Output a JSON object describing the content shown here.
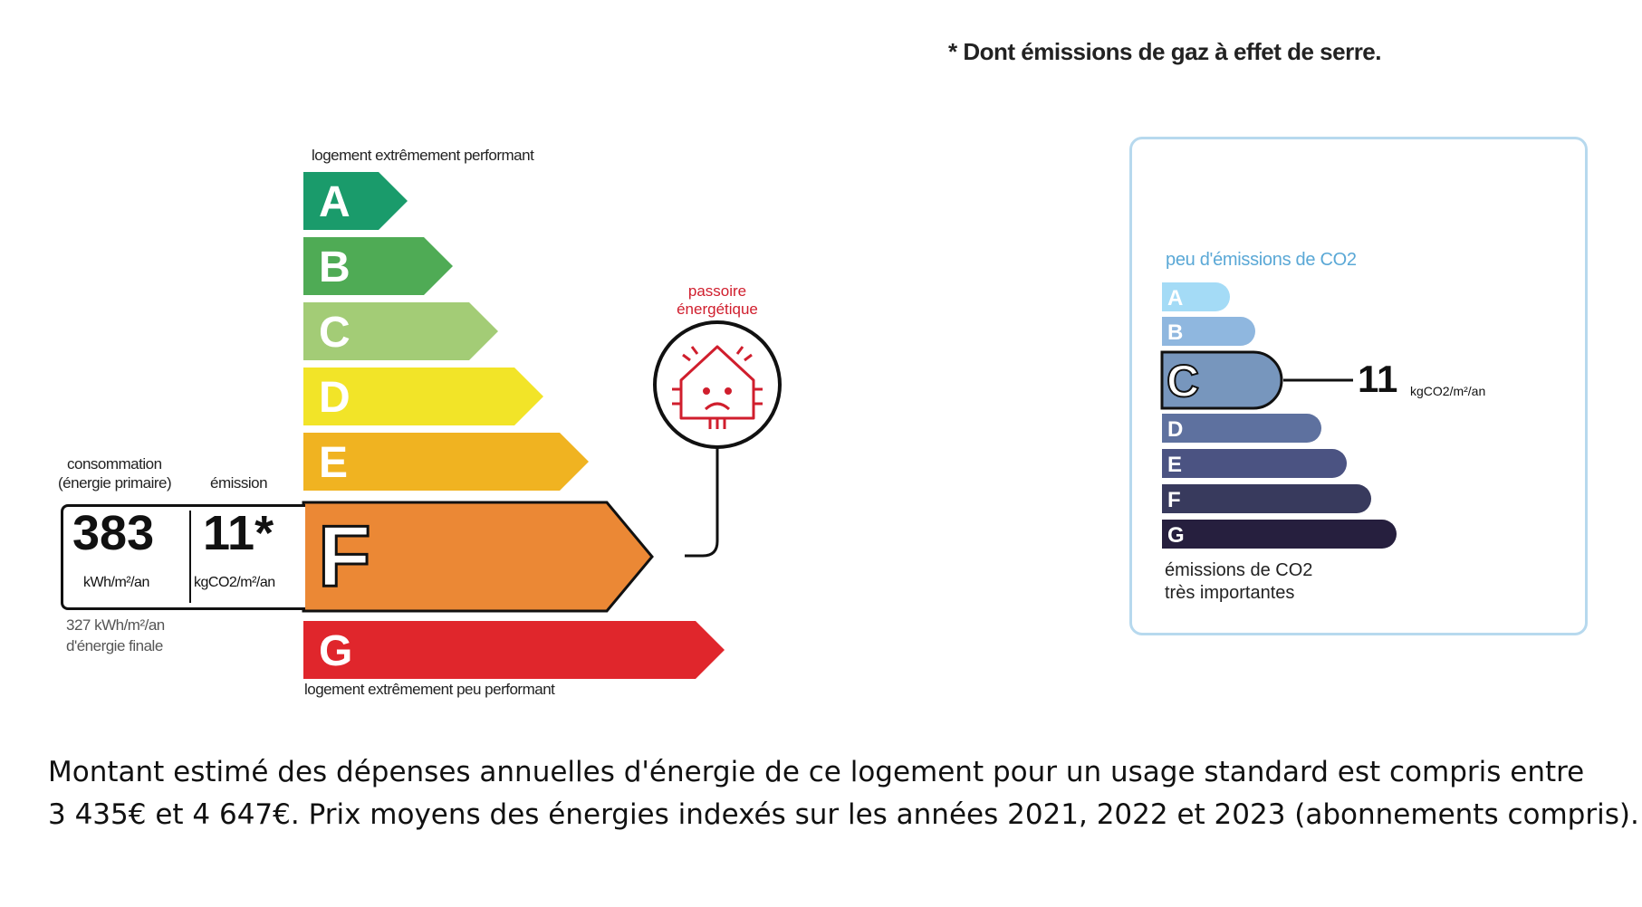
{
  "header": {
    "note": "* Dont émissions de gaz à effet de serre."
  },
  "dpe": {
    "top_label": "logement extrêmement performant",
    "bottom_label": "logement extrêmement peu performant",
    "classes": [
      {
        "letter": "A",
        "color": "#1a9b6b"
      },
      {
        "letter": "B",
        "color": "#4fab55"
      },
      {
        "letter": "C",
        "color": "#a3cc76"
      },
      {
        "letter": "D",
        "color": "#f2e428"
      },
      {
        "letter": "E",
        "color": "#f0b321"
      },
      {
        "letter": "F",
        "color": "#eb8835"
      },
      {
        "letter": "G",
        "color": "#e0262c"
      }
    ],
    "current_class": "F",
    "passoire_label_1": "passoire",
    "passoire_label_2": "énergétique",
    "passoire_color": "#d01e2d",
    "consumption_label_1": "consommation",
    "consumption_label_2": "(énergie primaire)",
    "emission_label": "émission",
    "consumption_value": "383",
    "consumption_unit": "kWh/m²/an",
    "emission_value": "11*",
    "emission_unit": "kgCO2/m²/an",
    "final_energy_1": "327 kWh/m²/an",
    "final_energy_2": "d'énergie finale"
  },
  "ges": {
    "top_label": "peu d'émissions de CO2",
    "classes": [
      {
        "letter": "A",
        "color": "#a4dbf6"
      },
      {
        "letter": "B",
        "color": "#8fb7df"
      },
      {
        "letter": "C",
        "color": "#7796bd"
      },
      {
        "letter": "D",
        "color": "#5e719f"
      },
      {
        "letter": "E",
        "color": "#4b5382"
      },
      {
        "letter": "F",
        "color": "#383a5d"
      },
      {
        "letter": "G",
        "color": "#261f3e"
      }
    ],
    "current_class": "C",
    "value": "11",
    "unit": "kgCO2/m²/an",
    "bottom_label_1": "émissions de CO2",
    "bottom_label_2": "très importantes"
  },
  "footer": {
    "line1": "Montant estimé des dépenses annuelles d'énergie de ce logement pour un usage standard est compris entre",
    "line2": "3 435€ et 4 647€. Prix moyens des énergies indexés sur les années 2021, 2022 et 2023 (abonnements compris)."
  }
}
